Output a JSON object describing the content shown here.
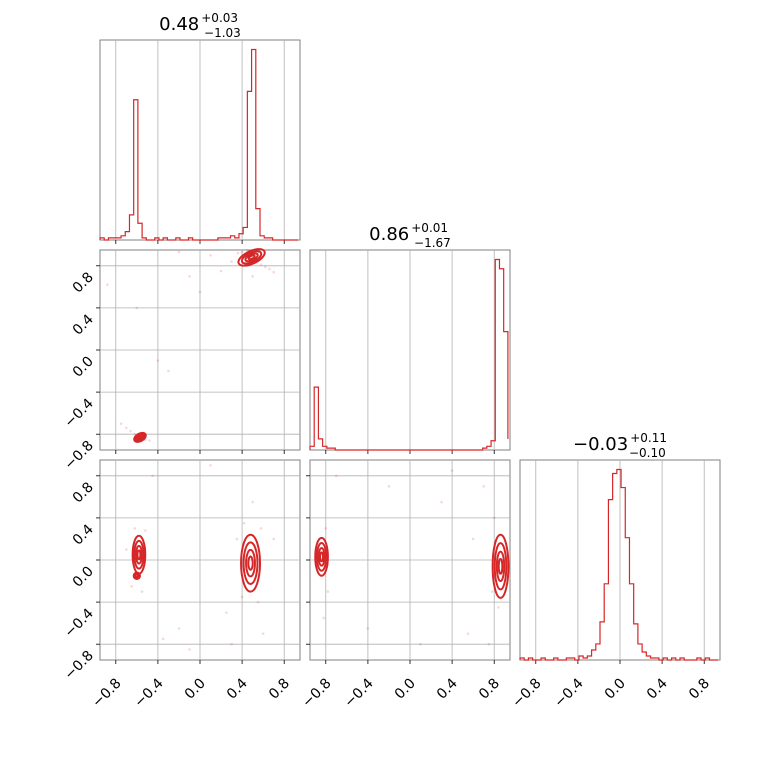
{
  "chart_data": {
    "type": "corner",
    "color": "#d62728",
    "parameters": [
      {
        "title": {
          "value": "0.48",
          "plus": "+0.03",
          "minus": "−1.03"
        },
        "range": [
          -0.95,
          0.95
        ],
        "ticks": [
          -0.8,
          -0.4,
          0.0,
          0.4,
          0.8
        ],
        "hist": {
          "bin_edges": [
            -0.95,
            -0.91,
            -0.87,
            -0.83,
            -0.79,
            -0.75,
            -0.71,
            -0.67,
            -0.63,
            -0.59,
            -0.55,
            -0.51,
            -0.47,
            -0.43,
            -0.39,
            -0.35,
            -0.31,
            -0.27,
            -0.23,
            -0.19,
            -0.15,
            -0.11,
            -0.07,
            -0.03,
            0.01,
            0.05,
            0.09,
            0.13,
            0.17,
            0.21,
            0.25,
            0.29,
            0.33,
            0.37,
            0.41,
            0.45,
            0.49,
            0.53,
            0.57,
            0.61,
            0.65,
            0.69,
            0.73,
            0.77,
            0.81,
            0.85,
            0.89,
            0.93
          ],
          "counts": [
            1,
            0,
            1,
            1,
            1,
            2,
            4,
            12,
            67,
            8,
            1,
            0,
            0,
            1,
            0,
            1,
            0,
            0,
            1,
            0,
            0,
            1,
            0,
            0,
            0,
            0,
            0,
            0,
            1,
            1,
            1,
            2,
            1,
            3,
            6,
            71,
            91,
            15,
            2,
            1,
            1,
            0,
            0,
            0,
            0,
            0,
            0
          ]
        }
      },
      {
        "title": {
          "value": "0.86",
          "plus": "+0.01",
          "minus": "−1.67"
        },
        "range": [
          -0.95,
          0.95
        ],
        "ticks": [
          -0.8,
          -0.4,
          0.0,
          0.4,
          0.8
        ],
        "hist": {
          "bin_edges": [
            -0.95,
            -0.91,
            -0.87,
            -0.83,
            -0.79,
            -0.75,
            -0.71,
            -0.67,
            -0.63,
            -0.59,
            -0.55,
            -0.51,
            -0.47,
            -0.43,
            -0.39,
            -0.35,
            -0.31,
            -0.27,
            -0.23,
            -0.19,
            -0.15,
            -0.11,
            -0.07,
            -0.03,
            0.01,
            0.05,
            0.09,
            0.13,
            0.17,
            0.21,
            0.25,
            0.29,
            0.33,
            0.37,
            0.41,
            0.45,
            0.49,
            0.53,
            0.57,
            0.61,
            0.65,
            0.69,
            0.73,
            0.77,
            0.81,
            0.85,
            0.89,
            0.93
          ],
          "counts": [
            2,
            34,
            6,
            2,
            1,
            1,
            0,
            0,
            0,
            0,
            0,
            0,
            0,
            0,
            0,
            0,
            0,
            0,
            0,
            0,
            0,
            0,
            0,
            0,
            0,
            0,
            0,
            0,
            0,
            0,
            0,
            0,
            0,
            0,
            0,
            0,
            0,
            0,
            0,
            0,
            0,
            1,
            2,
            5,
            103,
            98,
            64,
            6
          ]
        }
      },
      {
        "title": {
          "value": "−0.03",
          "plus": "+0.11",
          "minus": "−0.10"
        },
        "range": [
          -0.95,
          0.95
        ],
        "ticks": [
          -0.8,
          -0.4,
          0.0,
          0.4,
          0.8
        ],
        "hist": {
          "bin_edges": [
            -0.95,
            -0.91,
            -0.87,
            -0.83,
            -0.79,
            -0.75,
            -0.71,
            -0.67,
            -0.63,
            -0.59,
            -0.55,
            -0.51,
            -0.47,
            -0.43,
            -0.39,
            -0.35,
            -0.31,
            -0.27,
            -0.23,
            -0.19,
            -0.15,
            -0.11,
            -0.07,
            -0.03,
            0.01,
            0.05,
            0.09,
            0.13,
            0.17,
            0.21,
            0.25,
            0.29,
            0.33,
            0.37,
            0.41,
            0.45,
            0.49,
            0.53,
            0.57,
            0.61,
            0.65,
            0.69,
            0.73,
            0.77,
            0.81,
            0.85,
            0.89,
            0.93
          ],
          "counts": [
            1,
            0,
            1,
            0,
            0,
            1,
            0,
            0,
            1,
            0,
            0,
            1,
            1,
            0,
            2,
            1,
            2,
            5,
            8,
            19,
            38,
            80,
            93,
            95,
            86,
            61,
            38,
            18,
            8,
            4,
            2,
            1,
            1,
            0,
            1,
            0,
            1,
            0,
            1,
            0,
            0,
            0,
            1,
            0,
            1,
            0,
            0
          ]
        }
      }
    ],
    "pairs": [
      {
        "x_param": 0,
        "y_param": 1,
        "blobs": [
          {
            "cx": 0.49,
            "cy": 0.88,
            "sx": 0.045,
            "sy": 0.02,
            "rot": -25
          },
          {
            "cx": -0.57,
            "cy": -0.83,
            "sx": 0.02,
            "sy": 0.012,
            "rot": -30
          }
        ],
        "scatter": [
          [
            0.4,
            0.93
          ],
          [
            0.36,
            0.92
          ],
          [
            0.58,
            0.81
          ],
          [
            0.62,
            0.79
          ],
          [
            0.66,
            0.77
          ],
          [
            0.7,
            0.74
          ],
          [
            -0.75,
            -0.7
          ],
          [
            -0.7,
            -0.74
          ],
          [
            -0.66,
            -0.77
          ],
          [
            -0.62,
            -0.8
          ],
          [
            -0.52,
            -0.85
          ],
          [
            -0.48,
            -0.86
          ],
          [
            -0.88,
            0.62
          ],
          [
            -0.4,
            -0.1
          ],
          [
            -0.3,
            -0.2
          ],
          [
            0.0,
            0.55
          ],
          [
            0.2,
            0.75
          ],
          [
            0.3,
            0.84
          ],
          [
            -0.6,
            0.4
          ],
          [
            -0.1,
            0.7
          ],
          [
            0.1,
            0.9
          ],
          [
            0.5,
            0.7
          ],
          [
            0.45,
            0.95
          ],
          [
            0.55,
            0.93
          ],
          [
            -0.2,
            0.93
          ]
        ]
      },
      {
        "x_param": 0,
        "y_param": 2,
        "blobs": [
          {
            "cx": -0.58,
            "cy": 0.05,
            "sx": 0.02,
            "sy": 0.06,
            "rot": 0
          },
          {
            "cx": -0.6,
            "cy": -0.15,
            "sx": 0.01,
            "sy": 0.01,
            "rot": 0
          },
          {
            "cx": 0.48,
            "cy": -0.03,
            "sx": 0.03,
            "sy": 0.09,
            "rot": 0
          }
        ],
        "scatter": [
          [
            -0.62,
            0.3
          ],
          [
            -0.55,
            -0.3
          ],
          [
            -0.65,
            -0.25
          ],
          [
            -0.52,
            0.28
          ],
          [
            0.42,
            0.35
          ],
          [
            0.55,
            -0.4
          ],
          [
            0.4,
            -0.35
          ],
          [
            0.58,
            0.3
          ],
          [
            0.5,
            0.55
          ],
          [
            -0.35,
            -0.75
          ],
          [
            -0.2,
            -0.65
          ],
          [
            0.25,
            -0.5
          ],
          [
            0.3,
            -0.8
          ],
          [
            -0.45,
            0.8
          ],
          [
            0.1,
            0.9
          ],
          [
            0.7,
            0.2
          ],
          [
            0.35,
            0.2
          ],
          [
            -0.7,
            0.1
          ],
          [
            0.6,
            -0.7
          ],
          [
            -0.1,
            -0.85
          ]
        ]
      },
      {
        "x_param": 1,
        "y_param": 2,
        "blobs": [
          {
            "cx": -0.84,
            "cy": 0.03,
            "sx": 0.02,
            "sy": 0.06,
            "rot": 0
          },
          {
            "cx": 0.86,
            "cy": -0.06,
            "sx": 0.025,
            "sy": 0.1,
            "rot": 0
          }
        ],
        "scatter": [
          [
            -0.8,
            0.3
          ],
          [
            -0.78,
            -0.3
          ],
          [
            -0.82,
            -0.55
          ],
          [
            0.8,
            0.4
          ],
          [
            0.84,
            -0.45
          ],
          [
            0.78,
            -0.3
          ],
          [
            0.7,
            0.7
          ],
          [
            0.55,
            -0.7
          ],
          [
            0.6,
            0.2
          ],
          [
            -0.4,
            -0.65
          ],
          [
            0.1,
            -0.8
          ],
          [
            0.4,
            0.85
          ],
          [
            -0.2,
            0.7
          ],
          [
            0.3,
            0.55
          ],
          [
            0.75,
            -0.8
          ],
          [
            -0.7,
            0.8
          ]
        ]
      }
    ]
  }
}
